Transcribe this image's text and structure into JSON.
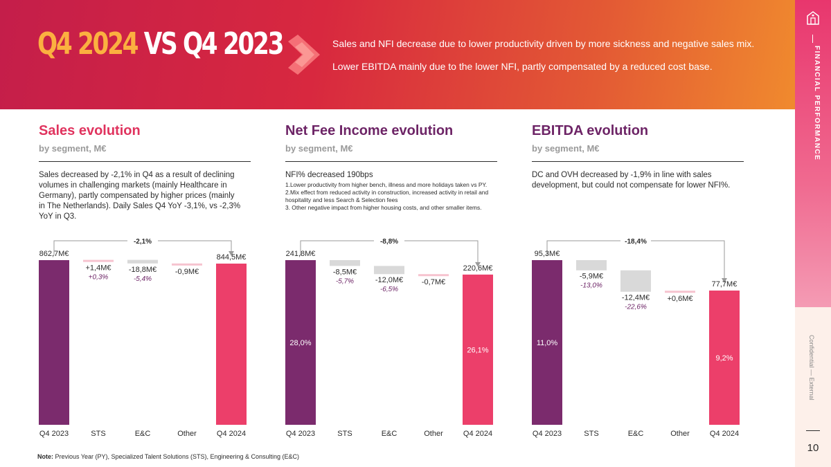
{
  "header": {
    "title_part1": "Q4 2024",
    "title_part2": "VS Q4 2023",
    "line1": "Sales and NFI decrease due to lower productivity driven by more sickness and negative sales mix.",
    "line2": "Lower EBITDA mainly due to the lower NFI, partly compensated by a reduced cost base."
  },
  "sidebar": {
    "section_label": "FINANCIAL PERFORMANCE",
    "confidential": "Confidential — External",
    "page_number": "10",
    "icon": "building-icon"
  },
  "colors": {
    "purple": "#7b2b6d",
    "pink": "#ec3f6a",
    "gray": "#d9d9d9",
    "light_pink": "#f6c3cf",
    "title_purple": "#6d2466",
    "title_pink": "#e0335e"
  },
  "panels": [
    {
      "title": "Sales evolution",
      "subtitle": "by segment, M€",
      "desc_lines": [
        "Sales decreased by -2,1% in Q4 as a result of declining",
        "volumes in challenging markets (mainly Healthcare in",
        "Germany), partly compensated by higher prices (mainly",
        "in The Netherlands). Daily Sales Q4 YoY -3,1%, vs -2,3%",
        "YoY in Q3."
      ]
    },
    {
      "title": "Net Fee Income evolution",
      "subtitle": "by segment, M€",
      "desc_head": "NFI% decreased 190bps",
      "desc_lines": [
        "1.Lower productivity from higher bench, illness and more holidays taken vs PY.",
        "2.Mix effect from reduced activity in construction, increased activity in retail and",
        "hospitality and less Search & Selection fees",
        "3. Other negative impact from higher housing costs, and other smaller items."
      ]
    },
    {
      "title": "EBITDA evolution",
      "subtitle": "by segment, M€",
      "desc_lines": [
        "DC and OVH decreased by -1,9% in line with sales",
        "development, but could not compensate for lower NFI%."
      ]
    }
  ],
  "chart_data": [
    {
      "type": "bar",
      "subtype": "waterfall",
      "categories": [
        "Q4 2023",
        "STS",
        "E&C",
        "Other",
        "Q4 2024"
      ],
      "values": [
        862.7,
        1.4,
        -18.8,
        -0.9,
        844.5
      ],
      "value_labels": [
        "862,7M€",
        "+1,4M€",
        "-18,8M€",
        "-0,9M€",
        "844,5M€"
      ],
      "pct_labels": [
        "",
        "+0,3%",
        "-5,4%",
        "",
        ""
      ],
      "inner_labels": [
        "",
        "",
        "",
        "",
        ""
      ],
      "change_label": "-2,1%",
      "ylim": [
        0,
        862.7
      ]
    },
    {
      "type": "bar",
      "subtype": "waterfall",
      "categories": [
        "Q4 2023",
        "STS",
        "E&C",
        "Other",
        "Q4 2024"
      ],
      "values": [
        241.8,
        -8.5,
        -12.0,
        -0.7,
        220.6
      ],
      "value_labels": [
        "241,8M€",
        "-8,5M€",
        "-12,0M€",
        "-0,7M€",
        "220,6M€"
      ],
      "pct_labels": [
        "",
        "-5,7%",
        "-6,5%",
        "",
        ""
      ],
      "inner_labels": [
        "28,0%",
        "",
        "",
        "",
        "26,1%"
      ],
      "change_label": "-8,8%",
      "ylim": [
        0,
        241.8
      ]
    },
    {
      "type": "bar",
      "subtype": "waterfall",
      "categories": [
        "Q4 2023",
        "STS",
        "E&C",
        "Other",
        "Q4 2024"
      ],
      "values": [
        95.3,
        -5.9,
        -12.4,
        0.6,
        77.7
      ],
      "value_labels": [
        "95,3M€",
        "-5,9M€",
        "-12,4M€",
        "+0,6M€",
        "77,7M€"
      ],
      "pct_labels": [
        "",
        "-13,0%",
        "-22,6%",
        "",
        ""
      ],
      "inner_labels": [
        "11,0%",
        "",
        "",
        "",
        "9,2%"
      ],
      "change_label": "-18,4%",
      "ylim": [
        0,
        95.3
      ]
    }
  ],
  "note": {
    "label": "Note:",
    "text": " Previous Year (PY), Specialized Talent Solutions (STS), Engineering & Consulting (E&C)"
  }
}
